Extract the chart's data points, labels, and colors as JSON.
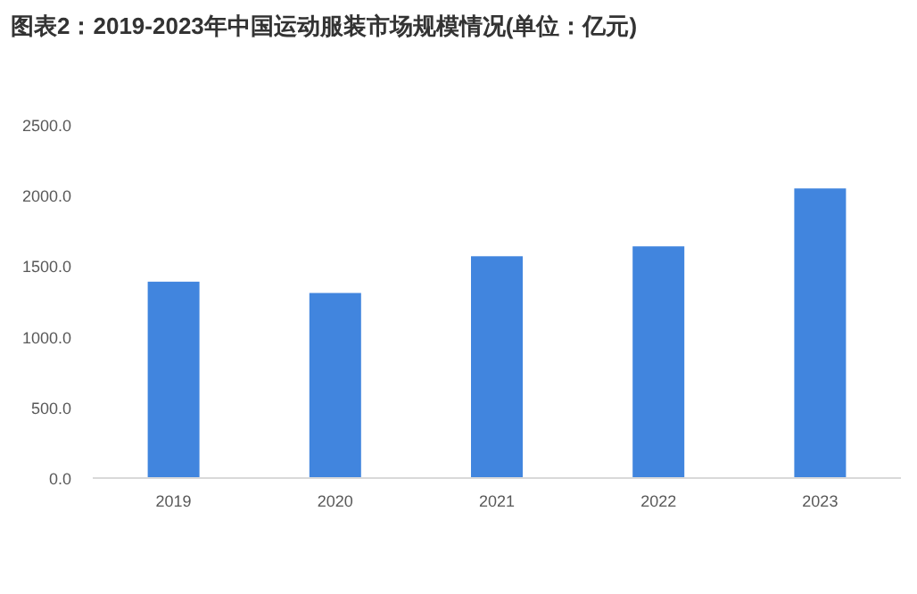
{
  "chart_data": {
    "type": "bar",
    "title": "图表2：2019-2023年中国运动服装市场规模情况(单位：亿元)",
    "categories": [
      "2019",
      "2020",
      "2021",
      "2022",
      "2023"
    ],
    "values": [
      1390,
      1310,
      1570,
      1640,
      2050
    ],
    "color": "#4185de",
    "ylim": [
      0,
      2500
    ],
    "yticks": [
      {
        "value": 0,
        "label": "0.0"
      },
      {
        "value": 500,
        "label": "500.0"
      },
      {
        "value": 1000,
        "label": "1000.0"
      },
      {
        "value": 1500,
        "label": "1500.0"
      },
      {
        "value": 2000,
        "label": "2000.0"
      },
      {
        "value": 2500,
        "label": "2500.0"
      }
    ],
    "grid": false
  }
}
